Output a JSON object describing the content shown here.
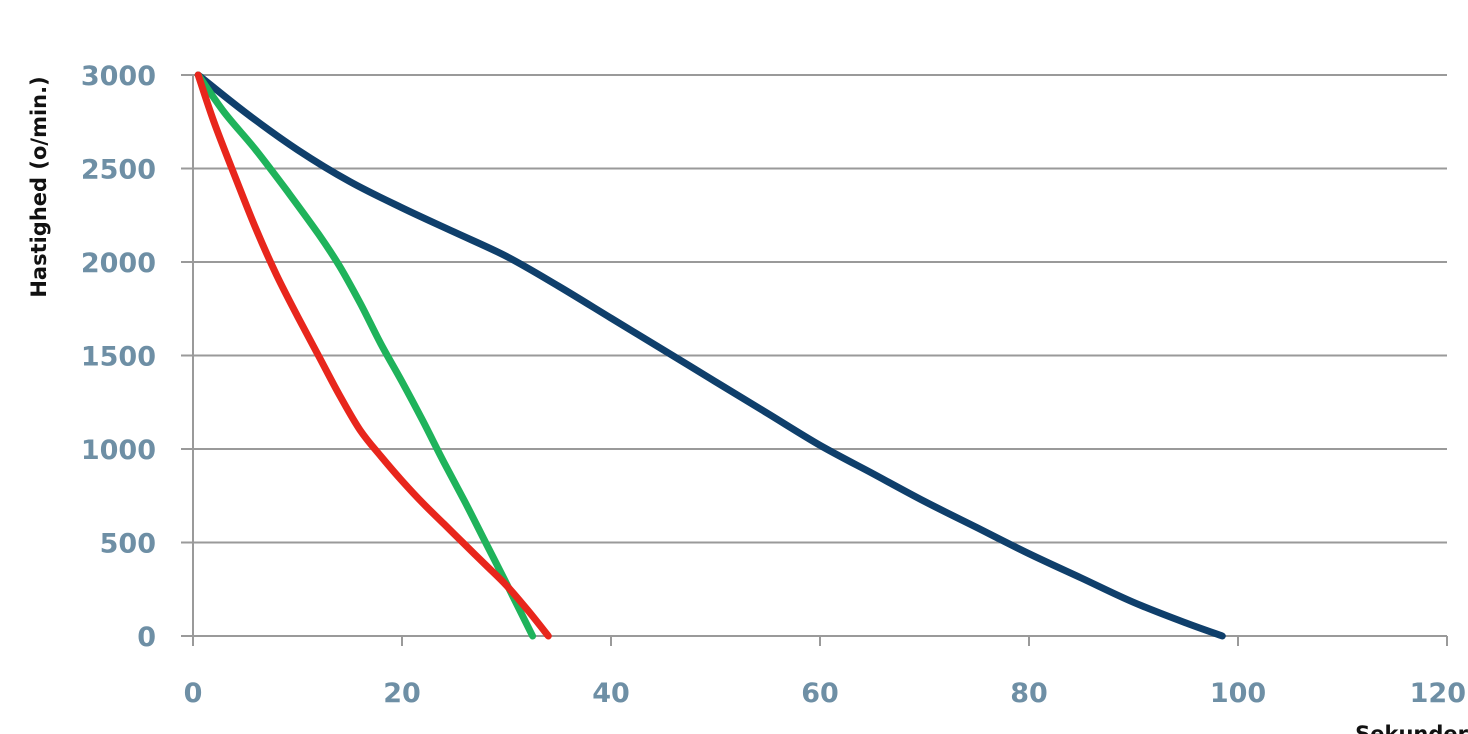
{
  "chart_data": {
    "type": "line",
    "title": "",
    "xlabel": "Sekunder",
    "ylabel": "Hastighed (o/min.)",
    "xlim": [
      0,
      120
    ],
    "ylim": [
      0,
      3000
    ],
    "x_ticks": [
      0,
      20,
      40,
      60,
      80,
      100,
      120
    ],
    "y_ticks": [
      0,
      500,
      1000,
      1500,
      2000,
      2500,
      3000
    ],
    "grid": "horizontal",
    "legend": "none",
    "series": [
      {
        "color": "#0f3f6b",
        "x": [
          0.5,
          5,
          10,
          15,
          20,
          25,
          30,
          35,
          40,
          45,
          50,
          55,
          60,
          65,
          70,
          75,
          80,
          85,
          90,
          95,
          98.5
        ],
        "y": [
          3000,
          2800,
          2600,
          2430,
          2290,
          2160,
          2030,
          1870,
          1700,
          1530,
          1360,
          1190,
          1020,
          870,
          720,
          580,
          440,
          310,
          180,
          70,
          0
        ]
      },
      {
        "color": "#1fb35b",
        "x": [
          0.5,
          3,
          6,
          9,
          12,
          14,
          16,
          18,
          20,
          22,
          24,
          26,
          28,
          30,
          32.5
        ],
        "y": [
          3000,
          2800,
          2600,
          2380,
          2150,
          1980,
          1780,
          1560,
          1360,
          1150,
          930,
          720,
          500,
          280,
          0
        ]
      },
      {
        "color": "#e8261c",
        "x": [
          0.5,
          2,
          4,
          6,
          8,
          10,
          12,
          14,
          16,
          18,
          20,
          22,
          24,
          26,
          28,
          30,
          32,
          34
        ],
        "y": [
          3000,
          2750,
          2460,
          2180,
          1930,
          1710,
          1500,
          1290,
          1100,
          960,
          830,
          710,
          600,
          490,
          380,
          270,
          140,
          0
        ]
      }
    ]
  }
}
